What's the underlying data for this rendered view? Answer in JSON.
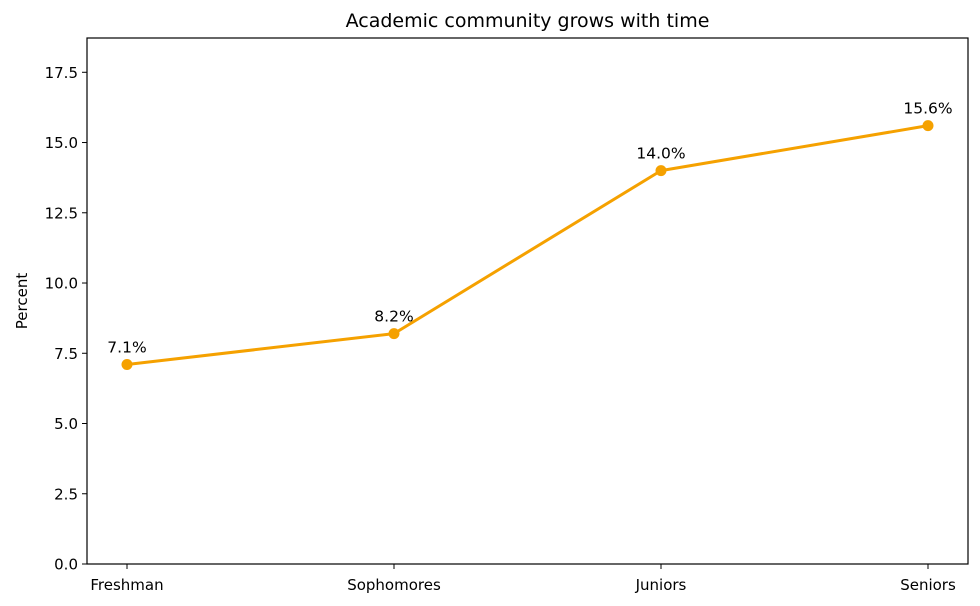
{
  "chart_data": {
    "type": "line",
    "title": "Academic community grows with time",
    "xlabel": "",
    "ylabel": "Percent",
    "categories": [
      "Freshman",
      "Sophomores",
      "Juniors",
      "Seniors"
    ],
    "series": [
      {
        "values": [
          7.1,
          8.2,
          14.0,
          15.6
        ],
        "labels": [
          "7.1%",
          "8.2%",
          "14.0%",
          "15.6%"
        ],
        "color": "#f5a100"
      }
    ],
    "ylim": [
      0,
      18.72
    ],
    "yticks": [
      0.0,
      2.5,
      5.0,
      7.5,
      10.0,
      12.5,
      15.0,
      17.5
    ],
    "ytick_labels": [
      "0.0",
      "2.5",
      "5.0",
      "7.5",
      "10.0",
      "12.5",
      "15.0",
      "17.5"
    ],
    "grid": false,
    "markers": true
  }
}
